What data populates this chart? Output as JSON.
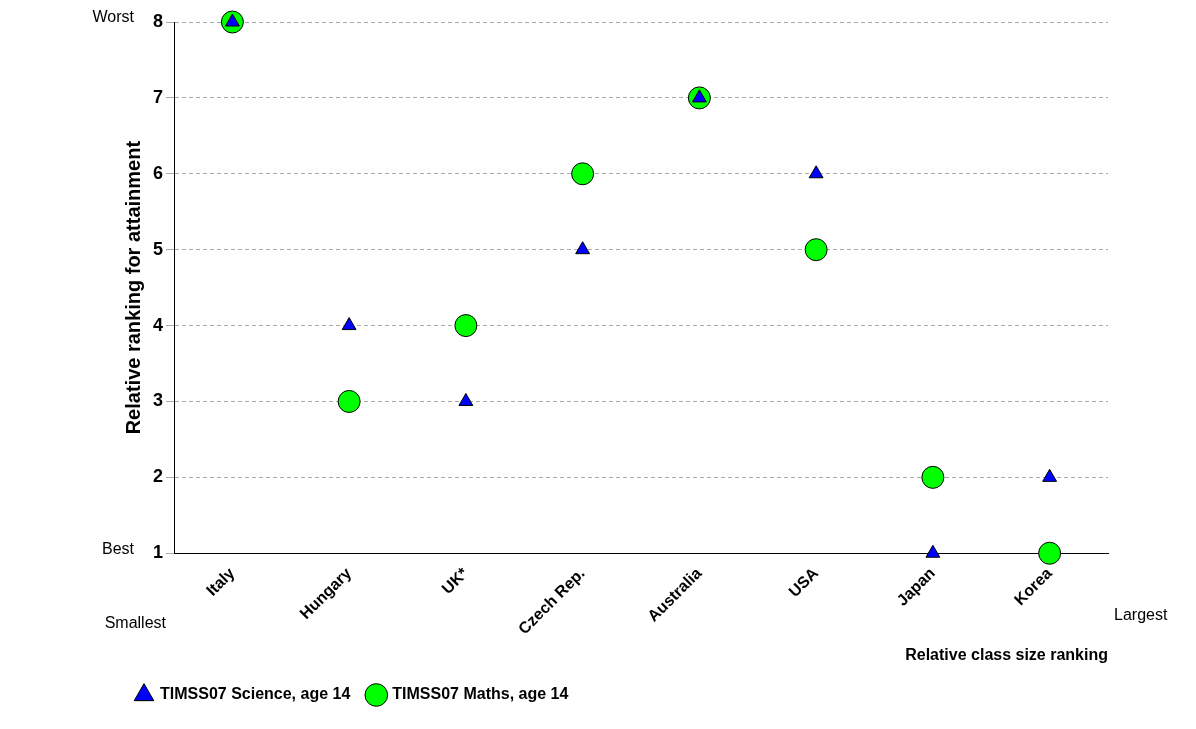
{
  "chart_data": {
    "type": "scatter",
    "xlabel": "Relative class size ranking",
    "ylabel": "Relative ranking for attainment",
    "categories": [
      "Italy",
      "Hungary",
      "UK*",
      "Czech Rep.",
      "Australia",
      "USA",
      "Japan",
      "Korea"
    ],
    "series": [
      {
        "name": "TIMSS07 Maths, age 14",
        "color": "#00ff00",
        "marker": "circle",
        "values": [
          8,
          3,
          4,
          6,
          7,
          5,
          2,
          1
        ]
      },
      {
        "name": "TIMSS07 Science, age 14",
        "color": "#0000ff",
        "marker": "triangle",
        "values": [
          8,
          4,
          3,
          5,
          7,
          6,
          1,
          2
        ]
      }
    ],
    "ylim": [
      1,
      8
    ],
    "yticks": [
      1,
      2,
      3,
      4,
      5,
      6,
      7,
      8
    ],
    "grid": "y",
    "legend": "bottom left",
    "annotations": [
      "Worst",
      "Best",
      "Smallest",
      "Largest"
    ]
  }
}
